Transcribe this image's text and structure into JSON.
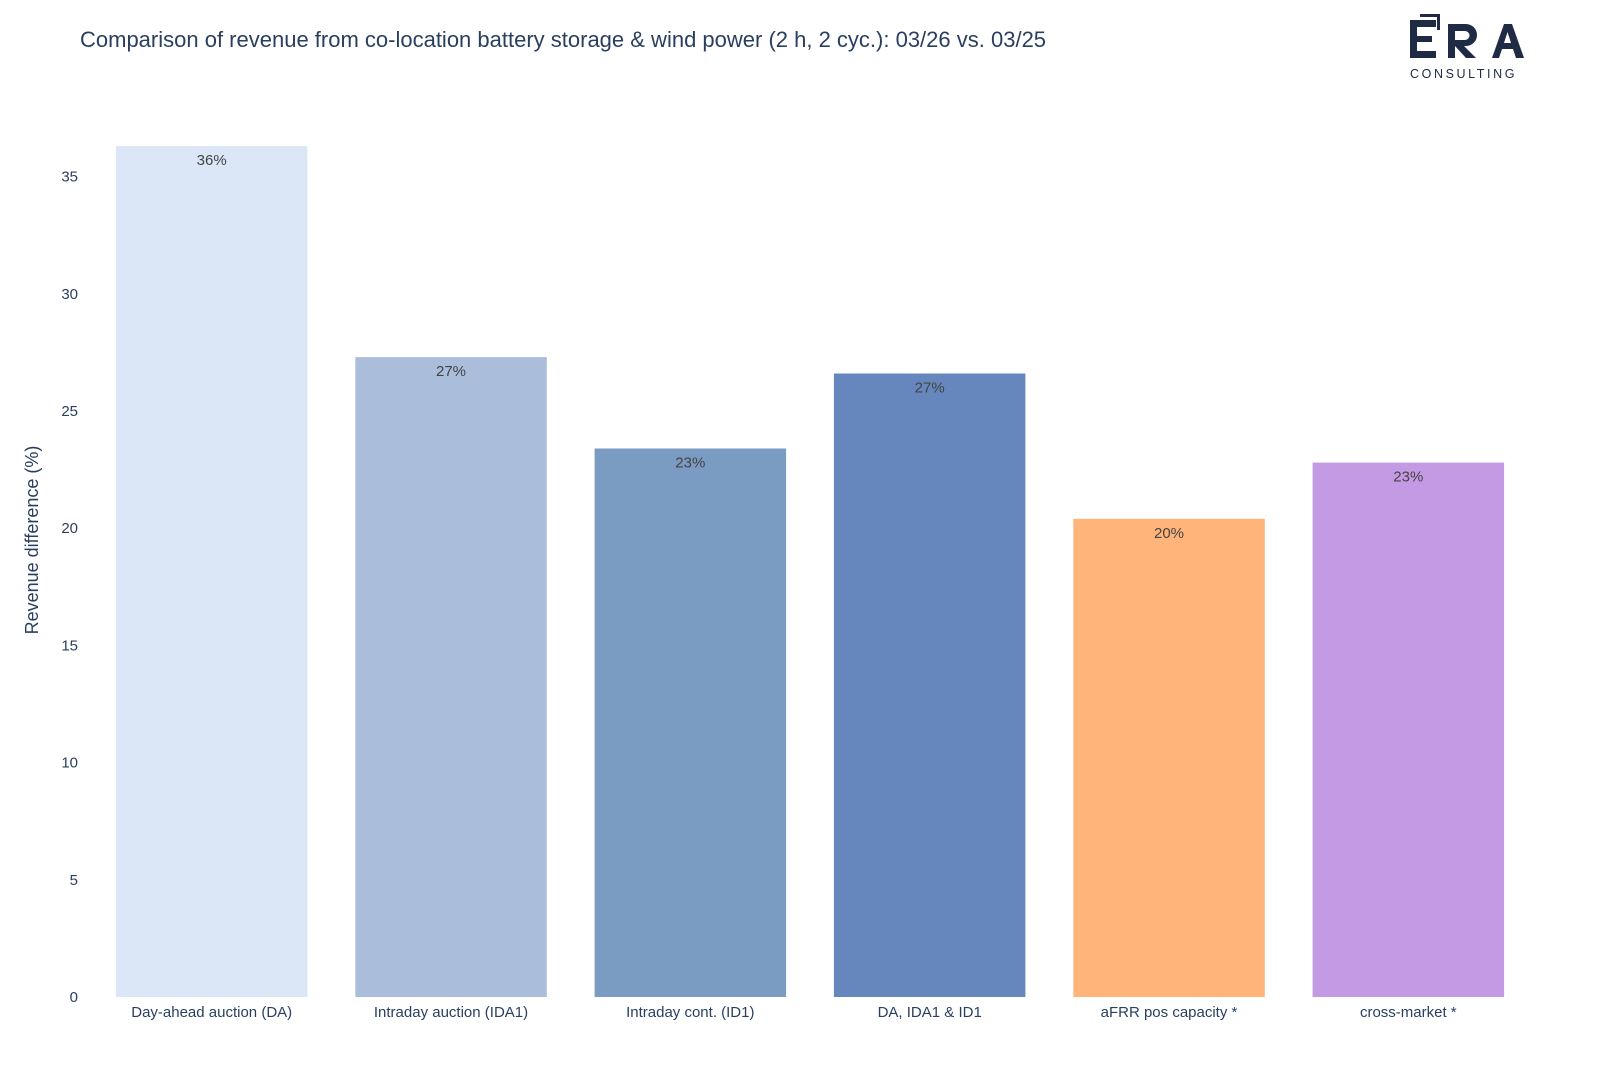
{
  "chart_data": {
    "type": "bar",
    "title": "Comparison of revenue from co-location battery storage & wind power (2 h, 2 cyc.): 03/26 vs. 03/25",
    "ylabel": "Revenue difference (%)",
    "xlabel": "",
    "ylim": [
      0,
      36.3
    ],
    "yticks": [
      0,
      5,
      10,
      15,
      20,
      25,
      30,
      35
    ],
    "grid": false,
    "legend": "none",
    "categories": [
      "Day-ahead auction (DA)",
      "Intraday auction (IDA1)",
      "Intraday cont. (ID1)",
      "DA, IDA1 & ID1",
      "aFRR pos capacity *",
      "cross-market *"
    ],
    "values": [
      36.3,
      27.3,
      23.4,
      26.6,
      20.4,
      22.8
    ],
    "data_labels": [
      "36%",
      "27%",
      "23%",
      "27%",
      "20%",
      "23%"
    ],
    "colors": [
      "#dbe7f7",
      "#aabedb",
      "#7a9bc2",
      "#6587bd",
      "#ffb47a",
      "#c39ae3"
    ]
  },
  "logo": {
    "text_main": "ERA",
    "text_sub": "CONSULTING",
    "color": "#1f2b44"
  }
}
